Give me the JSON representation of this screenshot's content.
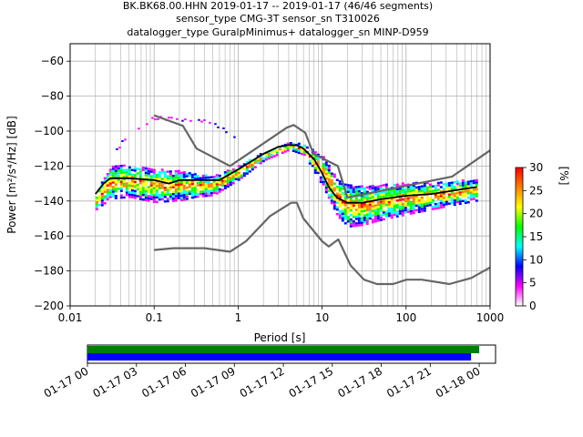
{
  "title_lines": [
    "BK.BK68.00.HHN   2019-01-17 -- 2019-01-17  (46/46 segments)",
    "sensor_type CMG-3T sensor_sn T310026",
    "datalogger_type GuralpMinimus+ datalogger_sn MINP-D959"
  ],
  "chart_data": [
    {
      "type": "heatmap",
      "subtype": "probabilistic-power-spectral-density",
      "xlabel": "Period [s]",
      "ylabel": "Power [m²/s⁴/Hz] [dB]",
      "x_scale": "log",
      "xlim": [
        0.01,
        1000
      ],
      "ylim": [
        -200,
        -50
      ],
      "x_ticks": [
        {
          "value": 0.01,
          "label": "0.01"
        },
        {
          "value": 0.1,
          "label": "0.1"
        },
        {
          "value": 1,
          "label": "1"
        },
        {
          "value": 10,
          "label": "10"
        },
        {
          "value": 100,
          "label": "100"
        },
        {
          "value": 1000,
          "label": "1000"
        }
      ],
      "y_ticks": [
        {
          "value": -60,
          "label": "−60"
        },
        {
          "value": -80,
          "label": "−80"
        },
        {
          "value": -100,
          "label": "−100"
        },
        {
          "value": -120,
          "label": "−120"
        },
        {
          "value": -140,
          "label": "−140"
        },
        {
          "value": -160,
          "label": "−160"
        },
        {
          "value": -180,
          "label": "−180"
        },
        {
          "value": -200,
          "label": "−200"
        }
      ],
      "grid": true,
      "colorbar": {
        "label": "[%]",
        "range": [
          0,
          30
        ],
        "ticks": [
          "0",
          "5",
          "10",
          "15",
          "20",
          "25",
          "30"
        ],
        "colormap": [
          "#ffffff",
          "#ff00ff",
          "#0000ff",
          "#00ffff",
          "#00ff00",
          "#ffff00",
          "#ff8000",
          "#ff0000"
        ]
      },
      "series": [
        {
          "role": "new-high-noise-model",
          "color": "#666666",
          "points": [
            [
              0.1,
              -91
            ],
            [
              0.22,
              -97
            ],
            [
              0.32,
              -110
            ],
            [
              0.8,
              -120
            ],
            [
              3.8,
              -98
            ],
            [
              4.6,
              -96.5
            ],
            [
              6.3,
              -101
            ],
            [
              7.9,
              -113
            ],
            [
              15.4,
              -120
            ],
            [
              20,
              -138
            ],
            [
              354,
              -126
            ],
            [
              1000,
              -111
            ]
          ]
        },
        {
          "role": "new-low-noise-model",
          "color": "#666666",
          "points": [
            [
              0.1,
              -168
            ],
            [
              0.17,
              -167
            ],
            [
              0.4,
              -167
            ],
            [
              0.8,
              -169
            ],
            [
              1.24,
              -163
            ],
            [
              2.4,
              -148.6
            ],
            [
              4.3,
              -141
            ],
            [
              5,
              -141
            ],
            [
              6,
              -150
            ],
            [
              10,
              -163
            ],
            [
              12,
              -166
            ],
            [
              15.6,
              -162
            ],
            [
              21.9,
              -177
            ],
            [
              31.6,
              -185
            ],
            [
              45,
              -187.5
            ],
            [
              70,
              -187.5
            ],
            [
              101,
              -185
            ],
            [
              154,
              -185
            ],
            [
              328,
              -187.5
            ],
            [
              600,
              -184
            ],
            [
              1000,
              -178
            ]
          ]
        },
        {
          "role": "mode",
          "color": "#000000",
          "points": [
            [
              0.02,
              -136
            ],
            [
              0.025,
              -130
            ],
            [
              0.03,
              -127
            ],
            [
              0.05,
              -127
            ],
            [
              0.1,
              -128
            ],
            [
              0.15,
              -130
            ],
            [
              0.2,
              -128
            ],
            [
              0.4,
              -128
            ],
            [
              0.6,
              -128
            ],
            [
              1,
              -122
            ],
            [
              2,
              -113
            ],
            [
              3,
              -109
            ],
            [
              4,
              -108
            ],
            [
              5,
              -108
            ],
            [
              6,
              -110
            ],
            [
              8,
              -116
            ],
            [
              10,
              -124
            ],
            [
              12,
              -132
            ],
            [
              15,
              -138
            ],
            [
              20,
              -141
            ],
            [
              30,
              -141
            ],
            [
              50,
              -139
            ],
            [
              100,
              -137
            ],
            [
              200,
              -136
            ],
            [
              500,
              -133
            ],
            [
              700,
              -132
            ]
          ]
        },
        {
          "role": "density-upper-sparse",
          "points": [
            [
              0.035,
              -110
            ],
            [
              0.05,
              -100
            ],
            [
              0.07,
              -96
            ],
            [
              0.1,
              -92
            ],
            [
              0.2,
              -93
            ],
            [
              0.35,
              -93
            ],
            [
              0.6,
              -97
            ],
            [
              0.9,
              -103
            ]
          ]
        },
        {
          "role": "density-band",
          "points": [
            [
              0.02,
              -134,
              -144
            ],
            [
              0.03,
              -119,
              -138
            ],
            [
              0.05,
              -119,
              -137
            ],
            [
              0.1,
              -121,
              -140
            ],
            [
              0.2,
              -122,
              -139
            ],
            [
              0.3,
              -124,
              -137
            ],
            [
              0.5,
              -125,
              -136
            ],
            [
              1,
              -119,
              -127
            ],
            [
              2,
              -111,
              -116
            ],
            [
              4,
              -106,
              -110
            ],
            [
              6,
              -107,
              -113
            ],
            [
              10,
              -114,
              -131
            ],
            [
              15,
              -127,
              -148
            ],
            [
              20,
              -130,
              -154
            ],
            [
              30,
              -131,
              -153
            ],
            [
              50,
              -130,
              -150
            ],
            [
              100,
              -129,
              -147
            ],
            [
              200,
              -129,
              -144
            ],
            [
              700,
              -127,
              -139
            ]
          ]
        }
      ]
    },
    {
      "type": "timeline",
      "xlim": [
        "2019-01-17T00:00",
        "2019-01-18T01:00"
      ],
      "tick_labels": [
        "01-17 00",
        "01-17 03",
        "01-17 06",
        "01-17 09",
        "01-17 12",
        "01-17 15",
        "01-17 18",
        "01-17 21",
        "01-18 00"
      ],
      "bars": [
        {
          "color": "#008000",
          "start": "2019-01-17T00:00",
          "end": "2019-01-18T00:00"
        },
        {
          "color": "#0000ff",
          "start": "2019-01-17T00:00",
          "end": "2019-01-17T23:30"
        }
      ]
    }
  ]
}
